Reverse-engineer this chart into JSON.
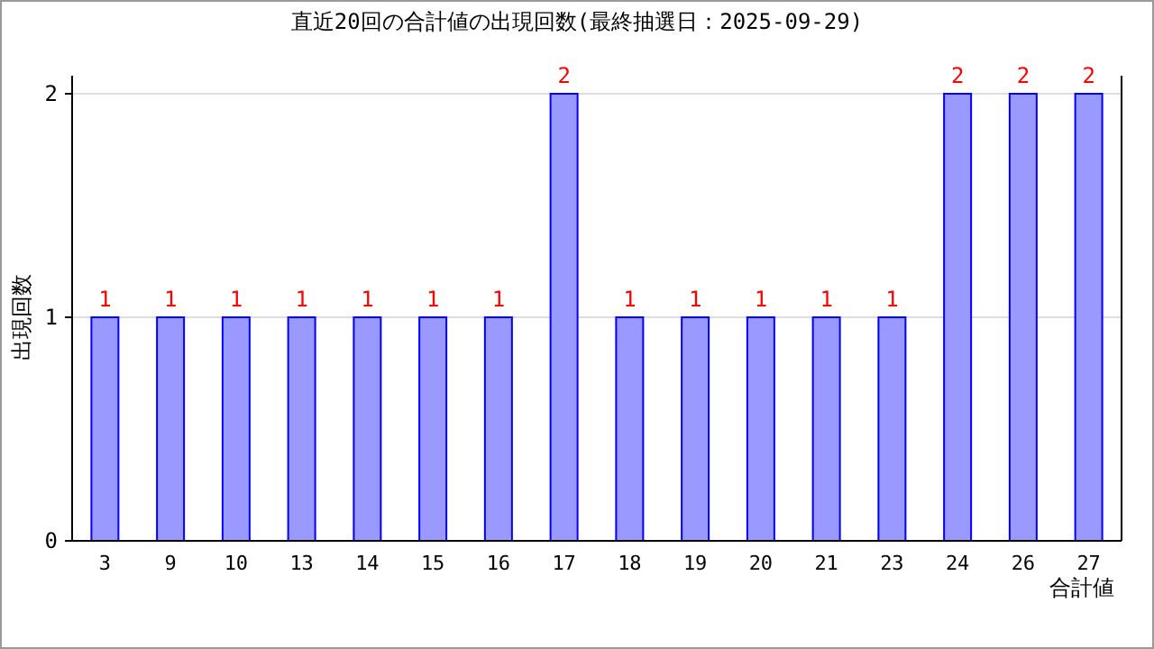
{
  "chart_data": {
    "type": "bar",
    "title": "直近20回の合計値の出現回数(最終抽選日：2025-09-29)",
    "xlabel": "合計値",
    "ylabel": "出現回数",
    "categories": [
      "3",
      "9",
      "10",
      "13",
      "14",
      "15",
      "16",
      "17",
      "18",
      "19",
      "20",
      "21",
      "23",
      "24",
      "26",
      "27"
    ],
    "values": [
      1,
      1,
      1,
      1,
      1,
      1,
      1,
      2,
      1,
      1,
      1,
      1,
      1,
      2,
      2,
      2
    ],
    "color": "#9999ff",
    "ylim": [
      0,
      2
    ],
    "yticks": [
      0,
      1,
      2
    ],
    "grid": "y",
    "data_labels": true
  }
}
